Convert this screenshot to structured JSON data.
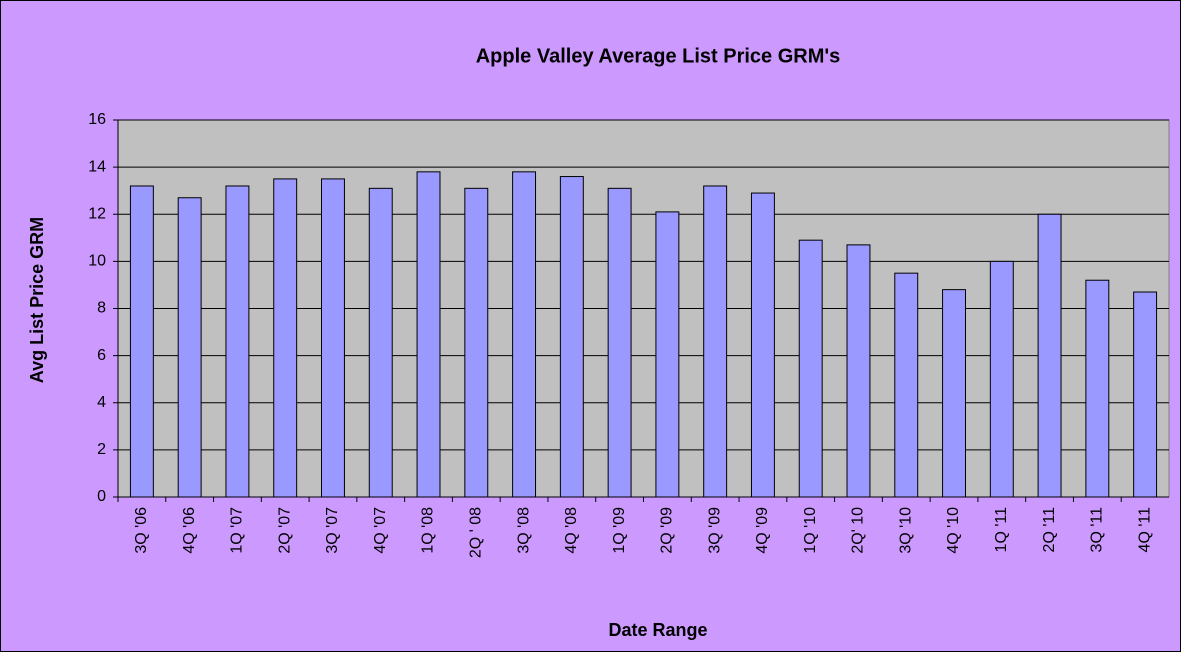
{
  "chart_data": {
    "type": "bar",
    "title": "Apple Valley Average List Price GRM's",
    "x_label": "Date Range",
    "y_label": "Avg List Price GRM",
    "categories": [
      "3Q '06",
      "4Q '06",
      "1Q '07",
      "2Q '07",
      "3Q '07",
      "4Q '07",
      "1Q '08",
      "2Q ' 08",
      "3Q '08",
      "4Q '08",
      "1Q '09",
      "2Q '09",
      "3Q '09",
      "4Q '09",
      "1Q '10",
      "2Q' 10",
      "3Q '10",
      "4Q '10",
      "1Q '11",
      "2Q '11",
      "3Q '11",
      "4Q '11"
    ],
    "values": [
      13.2,
      12.7,
      13.2,
      13.5,
      13.5,
      13.1,
      13.8,
      13.1,
      13.8,
      13.6,
      13.1,
      12.1,
      13.2,
      12.9,
      10.9,
      10.7,
      9.5,
      8.8,
      10.0,
      12.0,
      9.2,
      8.7
    ],
    "color": "#9999ff",
    "ylim": [
      0,
      16
    ],
    "yticks": [
      0,
      2,
      4,
      6,
      8,
      10,
      12,
      14,
      16
    ],
    "grid": true
  }
}
